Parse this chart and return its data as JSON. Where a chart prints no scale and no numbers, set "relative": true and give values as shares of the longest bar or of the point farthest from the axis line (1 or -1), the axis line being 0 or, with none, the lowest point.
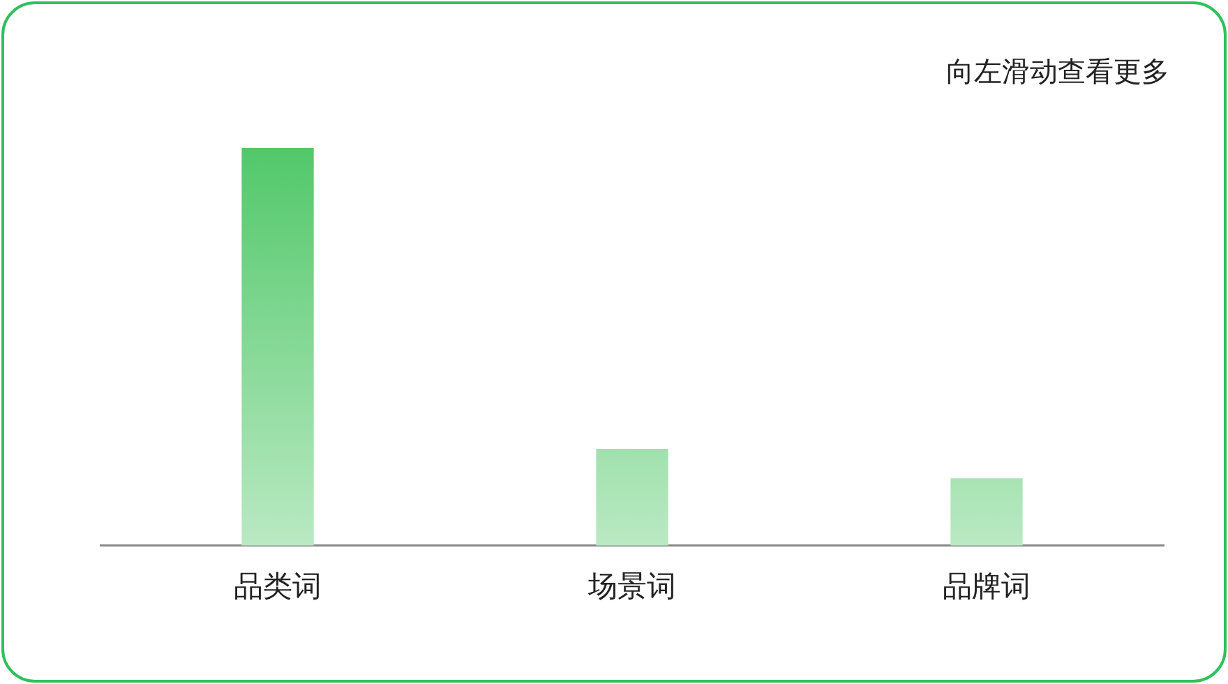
{
  "chart_data": {
    "type": "bar",
    "categories": [
      "品类词",
      "场景词",
      "品牌词"
    ],
    "values": [
      1,
      0.242,
      0.168
    ],
    "color": "#52c86a",
    "relative": true,
    "grid": false,
    "legend": false,
    "annotations": [
      "向左滑动查看更多"
    ]
  }
}
